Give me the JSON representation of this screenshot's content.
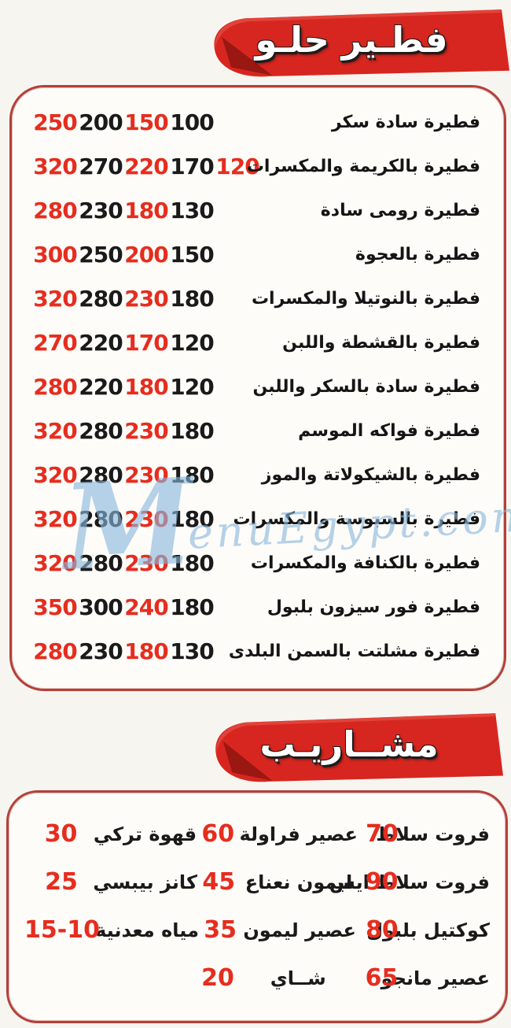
{
  "colors": {
    "banner_red": "#d7261f",
    "banner_fold_red": "#9a1712",
    "price_red": "#e62d1e",
    "price_black": "#1a1a1a",
    "box_border_red": "#b2413a",
    "watermark_blue": "#89b6db"
  },
  "watermark": {
    "m": "M",
    "rest": "enuEgypt.com"
  },
  "feteer": {
    "banner": "فطـير حلـو",
    "items": [
      {
        "name": "فطيرة سادة سكر",
        "prices": [
          "250",
          "200",
          "150",
          "100"
        ]
      },
      {
        "name": "فطيرة بالكريمة والمكسرات",
        "prices": [
          "320",
          "270",
          "220",
          "170",
          "120"
        ]
      },
      {
        "name": "فطيرة رومى سادة",
        "prices": [
          "280",
          "230",
          "180",
          "130"
        ]
      },
      {
        "name": "فطيرة بالعجوة",
        "prices": [
          "300",
          "250",
          "200",
          "150"
        ]
      },
      {
        "name": "فطيرة بالنوتيلا والمكسرات",
        "prices": [
          "320",
          "280",
          "230",
          "180"
        ]
      },
      {
        "name": "فطيرة بالقشطة واللبن",
        "prices": [
          "270",
          "220",
          "170",
          "120"
        ]
      },
      {
        "name": "فطيرة سادة بالسكر واللبن",
        "prices": [
          "280",
          "220",
          "180",
          "120"
        ]
      },
      {
        "name": "فطيرة فواكه الموسم",
        "prices": [
          "320",
          "280",
          "230",
          "180"
        ]
      },
      {
        "name": "فطيرة بالشيكولاتة والموز",
        "prices": [
          "320",
          "280",
          "230",
          "180"
        ]
      },
      {
        "name": "فطيرة بالسبوسة والمكسرات",
        "prices": [
          "320",
          "280",
          "230",
          "180"
        ]
      },
      {
        "name": "فطيرة بالكنافة والمكسرات",
        "prices": [
          "320",
          "280",
          "230",
          "180"
        ]
      },
      {
        "name": "فطيرة فور سيزون بلبول",
        "prices": [
          "350",
          "300",
          "240",
          "180"
        ]
      },
      {
        "name": "فطيرة مشلتت بالسمن البلدى",
        "prices": [
          "280",
          "230",
          "180",
          "130"
        ]
      }
    ]
  },
  "drinks": {
    "banner": "مشــاريـب",
    "rows": [
      [
        {
          "name": "فروت سلاط",
          "price": "70"
        },
        {
          "name": "عصير فراولة",
          "price": "60"
        },
        {
          "name": "قهوة تركي",
          "price": "30"
        }
      ],
      [
        {
          "name": "فروت سلاط ايس",
          "price": "90"
        },
        {
          "name": "ليمون نعناع",
          "price": "45"
        },
        {
          "name": "كانز بيبسي",
          "price": "25"
        }
      ],
      [
        {
          "name": "كوكتيل بلبول",
          "price": "80"
        },
        {
          "name": "عصير ليمون",
          "price": "35"
        },
        {
          "name": "مياه معدنية",
          "price": "15-10"
        }
      ],
      [
        {
          "name": "عصير مانجو",
          "price": "65"
        },
        {
          "name": "شــاي",
          "price": "20"
        },
        {
          "name": "",
          "price": ""
        }
      ]
    ]
  }
}
